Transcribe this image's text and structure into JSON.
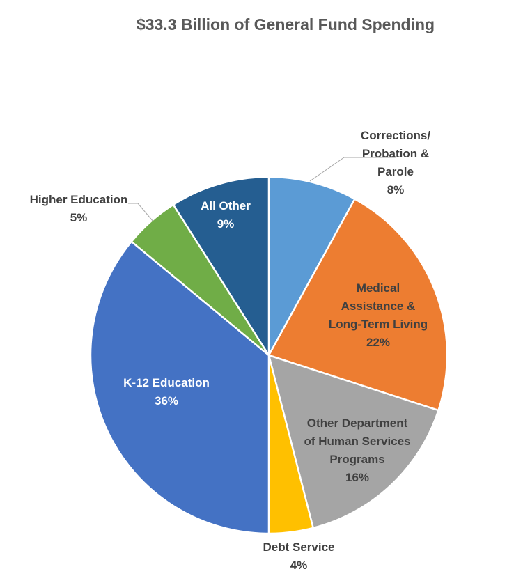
{
  "chart_data": {
    "type": "pie",
    "title": "$33.3 Billion of General Fund Spending",
    "slices": [
      {
        "name": "Corrections/ Probation & Parole",
        "label_lines": [
          "Corrections/",
          "Probation &",
          "Parole"
        ],
        "percent_label": "8%",
        "value": 8,
        "color": "#5b9bd5",
        "label_color": "#404040",
        "label_position": "outside"
      },
      {
        "name": "Medical Assistance & Long-Term Living",
        "label_lines": [
          "Medical",
          "Assistance &",
          "Long-Term Living"
        ],
        "percent_label": "22%",
        "value": 22,
        "color": "#ed7d31",
        "label_color": "#404040",
        "label_position": "inside"
      },
      {
        "name": "Other Department of Human Services Programs",
        "label_lines": [
          "Other Department",
          "of Human Services",
          "Programs"
        ],
        "percent_label": "16%",
        "value": 16,
        "color": "#a5a5a5",
        "label_color": "#404040",
        "label_position": "inside"
      },
      {
        "name": "Debt Service",
        "label_lines": [
          "Debt Service"
        ],
        "percent_label": "4%",
        "value": 4,
        "color": "#ffc000",
        "label_color": "#404040",
        "label_position": "outside"
      },
      {
        "name": "K-12 Education",
        "label_lines": [
          "K-12 Education"
        ],
        "percent_label": "36%",
        "value": 36,
        "color": "#4472c4",
        "label_color": "#ffffff",
        "label_position": "inside"
      },
      {
        "name": "Higher Education",
        "label_lines": [
          "Higher Education"
        ],
        "percent_label": "5%",
        "value": 5,
        "color": "#70ad47",
        "label_color": "#404040",
        "label_position": "outside"
      },
      {
        "name": "All Other",
        "label_lines": [
          "All Other"
        ],
        "percent_label": "9%",
        "value": 9,
        "color": "#255e91",
        "label_color": "#ffffff",
        "label_position": "inside"
      }
    ]
  }
}
